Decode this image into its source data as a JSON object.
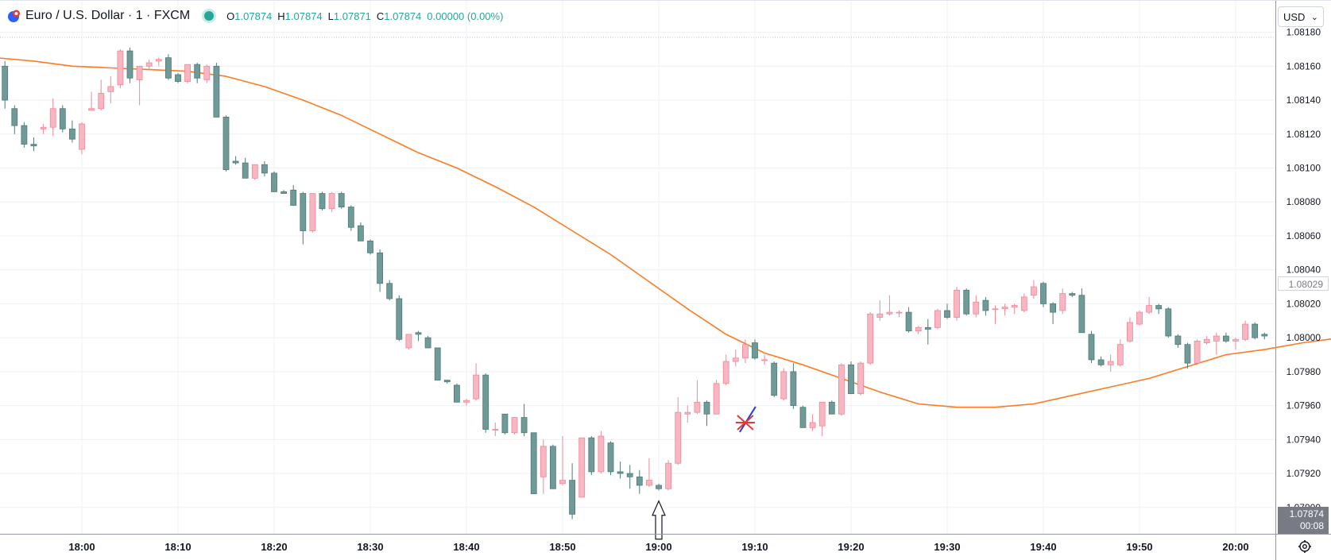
{
  "symbol": {
    "title": "Euro / U.S. Dollar · 1 · FXCM",
    "icon": "eurusd-flag-icon",
    "status_icon": "market-open-dot-icon"
  },
  "ohlc": {
    "o_label": "O",
    "o": "1.07874",
    "h_label": "H",
    "h": "1.07874",
    "l_label": "L",
    "l": "1.07871",
    "c_label": "C",
    "c": "1.07874",
    "change": "0.00000 (0.00%)"
  },
  "currency": {
    "label": "USD",
    "icon": "chevron-down-icon"
  },
  "settings": {
    "icon": "gear-icon"
  },
  "price_tags": {
    "ma_value": "1.08029",
    "last_price": "1.07874",
    "countdown": "00:08"
  },
  "colors": {
    "up": "#f7b6c2",
    "up_border": "#f08898",
    "down": "#6f9a98",
    "down_border": "#4f7a78",
    "ma": "#ff7a20",
    "grid": "#edf0f4",
    "accent": "#26a69a"
  },
  "annotations": [
    {
      "type": "arrow-up",
      "time": "19:00",
      "price": 1.079
    },
    {
      "type": "cross-marker",
      "time": "19:09",
      "price": 1.0795
    }
  ],
  "chart_data": {
    "type": "candlestick",
    "title": "Euro / U.S. Dollar · 1 · FXCM",
    "y_ticks": [
      "1.08180",
      "1.08160",
      "1.08140",
      "1.08120",
      "1.08100",
      "1.08080",
      "1.08060",
      "1.08040",
      "1.08020",
      "1.08000",
      "1.07980",
      "1.07960",
      "1.07940",
      "1.07920",
      "1.07900"
    ],
    "x_ticks": [
      "18:00",
      "18:10",
      "18:20",
      "18:30",
      "18:40",
      "18:50",
      "19:00",
      "19:10",
      "19:20",
      "19:30",
      "19:40",
      "19:50",
      "20:00"
    ],
    "ylim": [
      1.07869,
      1.08199
    ],
    "grid": true,
    "series": [
      {
        "name": "",
        "type": "candles",
        "columns": [
          "o",
          "h",
          "l",
          "c"
        ],
        "values": [
          [
            1.0816,
            1.08163,
            1.0815,
            1.08157
          ],
          [
            1.0816,
            1.08163,
            1.08135,
            1.0814
          ],
          [
            1.08135,
            1.08137,
            1.0812,
            1.08125
          ],
          [
            1.08125,
            1.08127,
            1.08112,
            1.08114
          ],
          [
            1.08114,
            1.08118,
            1.0811,
            1.08113
          ],
          [
            1.08123,
            1.08126,
            1.0812,
            1.08124
          ],
          [
            1.08124,
            1.08141,
            1.08119,
            1.08135
          ],
          [
            1.08135,
            1.08137,
            1.08121,
            1.08123
          ],
          [
            1.08123,
            1.08128,
            1.08115,
            1.08117
          ],
          [
            1.08111,
            1.08127,
            1.08108,
            1.08126
          ],
          [
            1.08134,
            1.08145,
            1.08134,
            1.08135
          ],
          [
            1.08135,
            1.08152,
            1.08134,
            1.08144
          ],
          [
            1.08145,
            1.08154,
            1.08138,
            1.08148
          ],
          [
            1.08149,
            1.0817,
            1.08147,
            1.08169
          ],
          [
            1.08169,
            1.08171,
            1.0815,
            1.08153
          ],
          [
            1.08152,
            1.08159,
            1.08137,
            1.0816
          ],
          [
            1.0816,
            1.08164,
            1.08158,
            1.08162
          ],
          [
            1.08163,
            1.08165,
            1.0816,
            1.08164
          ],
          [
            1.08165,
            1.08167,
            1.08152,
            1.08153
          ],
          [
            1.08155,
            1.08156,
            1.0815,
            1.08151
          ],
          [
            1.08151,
            1.08161,
            1.0815,
            1.08161
          ],
          [
            1.08161,
            1.08162,
            1.0815,
            1.08153
          ],
          [
            1.08152,
            1.08161,
            1.0815,
            1.0816
          ],
          [
            1.0816,
            1.08162,
            1.0813,
            1.0813
          ],
          [
            1.0813,
            1.08131,
            1.08098,
            1.08099
          ],
          [
            1.08104,
            1.08107,
            1.08102,
            1.08103
          ],
          [
            1.08103,
            1.08106,
            1.08094,
            1.08094
          ],
          [
            1.08094,
            1.08102,
            1.08093,
            1.08102
          ],
          [
            1.08102,
            1.08104,
            1.08095,
            1.08097
          ],
          [
            1.08097,
            1.08098,
            1.08086,
            1.08086
          ],
          [
            1.08086,
            1.08087,
            1.08085,
            1.08085
          ],
          [
            1.08087,
            1.0809,
            1.08078,
            1.08078
          ],
          [
            1.08085,
            1.08086,
            1.08055,
            1.08063
          ],
          [
            1.08063,
            1.08085,
            1.08062,
            1.08085
          ],
          [
            1.08085,
            1.08086,
            1.08075,
            1.08076
          ],
          [
            1.08076,
            1.08086,
            1.08074,
            1.08085
          ],
          [
            1.08085,
            1.08086,
            1.08076,
            1.08077
          ],
          [
            1.08077,
            1.08078,
            1.08063,
            1.08065
          ],
          [
            1.08066,
            1.08068,
            1.08057,
            1.08057
          ],
          [
            1.08057,
            1.08058,
            1.08049,
            1.0805
          ],
          [
            1.0805,
            1.08052,
            1.08027,
            1.08032
          ],
          [
            1.08032,
            1.08034,
            1.08022,
            1.08023
          ],
          [
            1.08023,
            1.08025,
            1.07998,
            1.07999
          ],
          [
            1.07994,
            1.08002,
            1.07993,
            1.08002
          ],
          [
            1.08003,
            1.08004,
            1.07998,
            1.08002
          ],
          [
            1.08,
            1.08001,
            1.07994,
            1.07994
          ],
          [
            1.07994,
            1.07994,
            1.07975,
            1.07975
          ],
          [
            1.07975,
            1.07975,
            1.07973,
            1.07974
          ],
          [
            1.07972,
            1.07973,
            1.07962,
            1.07962
          ],
          [
            1.07962,
            1.07964,
            1.0796,
            1.07963
          ],
          [
            1.07964,
            1.07985,
            1.07963,
            1.07978
          ],
          [
            1.07978,
            1.07979,
            1.07944,
            1.07946
          ],
          [
            1.07946,
            1.0795,
            1.07942,
            1.07946
          ],
          [
            1.07955,
            1.07955,
            1.07943,
            1.07944
          ],
          [
            1.07944,
            1.07952,
            1.07943,
            1.07953
          ],
          [
            1.07953,
            1.07961,
            1.07942,
            1.07944
          ],
          [
            1.07944,
            1.07944,
            1.07908,
            1.07908
          ],
          [
            1.07918,
            1.0794,
            1.07908,
            1.07936
          ],
          [
            1.07936,
            1.07937,
            1.07911,
            1.07911
          ],
          [
            1.07914,
            1.07942,
            1.07913,
            1.07916
          ],
          [
            1.07916,
            1.07926,
            1.07893,
            1.07896
          ],
          [
            1.07906,
            1.07941,
            1.07906,
            1.07941
          ],
          [
            1.07941,
            1.07942,
            1.07919,
            1.07921
          ],
          [
            1.07921,
            1.07945,
            1.0792,
            1.07942
          ],
          [
            1.07938,
            1.07939,
            1.07919,
            1.07921
          ],
          [
            1.07921,
            1.07927,
            1.07917,
            1.0792
          ],
          [
            1.0792,
            1.07925,
            1.07911,
            1.07918
          ],
          [
            1.07918,
            1.07922,
            1.07908,
            1.07913
          ],
          [
            1.07913,
            1.07929,
            1.07912,
            1.07916
          ],
          [
            1.07913,
            1.07914,
            1.0791,
            1.07911
          ],
          [
            1.07911,
            1.07928,
            1.0791,
            1.07926
          ],
          [
            1.07926,
            1.07965,
            1.07925,
            1.07956
          ],
          [
            1.07955,
            1.0796,
            1.0795,
            1.07956
          ],
          [
            1.07956,
            1.07975,
            1.07955,
            1.07962
          ],
          [
            1.07962,
            1.07963,
            1.07948,
            1.07955
          ],
          [
            1.07955,
            1.07975,
            1.07955,
            1.07973
          ],
          [
            1.07973,
            1.0799,
            1.07972,
            1.07986
          ],
          [
            1.07986,
            1.07993,
            1.07983,
            1.07988
          ],
          [
            1.07988,
            1.07999,
            1.07985,
            1.07996
          ],
          [
            1.07997,
            1.07999,
            1.07987,
            1.07988
          ],
          [
            1.07987,
            1.0799,
            1.07984,
            1.07987
          ],
          [
            1.07985,
            1.07986,
            1.07965,
            1.07966
          ],
          [
            1.07964,
            1.07982,
            1.07963,
            1.0798
          ],
          [
            1.0798,
            1.07985,
            1.07958,
            1.0796
          ],
          [
            1.07959,
            1.0796,
            1.07947,
            1.07947
          ],
          [
            1.07947,
            1.07955,
            1.07945,
            1.0795
          ],
          [
            1.07948,
            1.07962,
            1.07942,
            1.07962
          ],
          [
            1.07962,
            1.07963,
            1.07955,
            1.07955
          ],
          [
            1.07955,
            1.07985,
            1.07954,
            1.07984
          ],
          [
            1.07984,
            1.07986,
            1.07967,
            1.07967
          ],
          [
            1.07967,
            1.07986,
            1.07966,
            1.07985
          ],
          [
            1.07985,
            1.08015,
            1.07984,
            1.08014
          ],
          [
            1.08012,
            1.08022,
            1.0801,
            1.08014
          ],
          [
            1.08014,
            1.08025,
            1.08013,
            1.08015
          ],
          [
            1.08015,
            1.08016,
            1.08012,
            1.08015
          ],
          [
            1.08015,
            1.08018,
            1.08003,
            1.08004
          ],
          [
            1.08004,
            1.08007,
            1.08002,
            1.08006
          ],
          [
            1.08006,
            1.08011,
            1.07996,
            1.08005
          ],
          [
            1.08006,
            1.08017,
            1.08005,
            1.08016
          ],
          [
            1.08016,
            1.0802,
            1.08011,
            1.08012
          ],
          [
            1.08012,
            1.0803,
            1.0801,
            1.08028
          ],
          [
            1.08028,
            1.08029,
            1.08013,
            1.08014
          ],
          [
            1.08014,
            1.08025,
            1.08012,
            1.08021
          ],
          [
            1.08022,
            1.08024,
            1.08013,
            1.08016
          ],
          [
            1.08017,
            1.08019,
            1.08008,
            1.08017
          ],
          [
            1.08017,
            1.0802,
            1.08013,
            1.08018
          ],
          [
            1.08018,
            1.0802,
            1.08014,
            1.08019
          ],
          [
            1.08016,
            1.08026,
            1.08015,
            1.08024
          ],
          [
            1.08025,
            1.08034,
            1.08023,
            1.0803
          ],
          [
            1.08032,
            1.08033,
            1.08018,
            1.0802
          ],
          [
            1.0802,
            1.08021,
            1.08008,
            1.08015
          ],
          [
            1.08016,
            1.08029,
            1.08014,
            1.08026
          ],
          [
            1.08026,
            1.08027,
            1.08024,
            1.08025
          ],
          [
            1.08025,
            1.08029,
            1.08003,
            1.08003
          ],
          [
            1.08002,
            1.08004,
            1.07985,
            1.07987
          ],
          [
            1.07987,
            1.07989,
            1.07983,
            1.07984
          ],
          [
            1.07984,
            1.0799,
            1.0798,
            1.07986
          ],
          [
            1.07984,
            1.07999,
            1.07983,
            1.07996
          ],
          [
            1.07998,
            1.08012,
            1.07997,
            1.08009
          ],
          [
            1.08008,
            1.08016,
            1.08007,
            1.08015
          ],
          [
            1.08015,
            1.08024,
            1.08014,
            1.08019
          ],
          [
            1.08019,
            1.0802,
            1.08014,
            1.08017
          ],
          [
            1.08017,
            1.08018,
            1.08,
            1.08001
          ],
          [
            1.08001,
            1.08002,
            1.07994,
            1.07996
          ],
          [
            1.07996,
            1.07997,
            1.07982,
            1.07985
          ],
          [
            1.07985,
            1.07999,
            1.07984,
            1.07998
          ],
          [
            1.07997,
            1.08001,
            1.07996,
            1.07999
          ],
          [
            1.07998,
            1.08003,
            1.0799,
            1.08001
          ],
          [
            1.08001,
            1.08003,
            1.07997,
            1.07998
          ],
          [
            1.07998,
            1.08,
            1.07993,
            1.07999
          ],
          [
            1.07999,
            1.0801,
            1.07998,
            1.08008
          ],
          [
            1.08008,
            1.08009,
            1.07999,
            1.08
          ],
          [
            1.08002,
            1.08003,
            1.07999,
            1.08001
          ],
          [
            1.08,
            1.08008,
            1.07999,
            1.08006
          ],
          [
            1.08006,
            1.08007,
            1.08002,
            1.08003
          ],
          [
            1.08006,
            1.08019,
            1.08004,
            1.08006
          ],
          [
            1.08006,
            1.08009,
            1.08005,
            1.08008
          ],
          [
            1.08008,
            1.08009,
            1.08007,
            1.08007
          ],
          [
            1.08007,
            1.08023,
            1.08006,
            1.08021
          ],
          [
            1.08021,
            1.0804,
            1.0802,
            1.08036
          ]
        ]
      },
      {
        "name": "",
        "type": "line",
        "values": [
          [
            0,
            1.08165
          ],
          [
            4,
            1.08163
          ],
          [
            8,
            1.0816
          ],
          [
            12,
            1.08159
          ],
          [
            16,
            1.08158
          ],
          [
            20,
            1.08157
          ],
          [
            24,
            1.08154
          ],
          [
            28,
            1.08148
          ],
          [
            32,
            1.0814
          ],
          [
            36,
            1.08131
          ],
          [
            40,
            1.0812
          ],
          [
            44,
            1.08109
          ],
          [
            48,
            1.081
          ],
          [
            52,
            1.08089
          ],
          [
            56,
            1.08077
          ],
          [
            60,
            1.08063
          ],
          [
            64,
            1.08049
          ],
          [
            68,
            1.08033
          ],
          [
            72,
            1.08017
          ],
          [
            76,
            1.08002
          ],
          [
            80,
            1.07991
          ],
          [
            84,
            1.07984
          ],
          [
            88,
            1.07976
          ],
          [
            92,
            1.07968
          ],
          [
            96,
            1.07961
          ],
          [
            100,
            1.07959
          ],
          [
            104,
            1.07959
          ],
          [
            108,
            1.07961
          ],
          [
            112,
            1.07966
          ],
          [
            116,
            1.07971
          ],
          [
            120,
            1.07976
          ],
          [
            124,
            1.07983
          ],
          [
            128,
            1.0799
          ],
          [
            132,
            1.07993
          ],
          [
            136,
            1.07997
          ],
          [
            140,
            1.08
          ],
          [
            144,
            1.08001
          ],
          [
            148,
            1.08003
          ],
          [
            152,
            1.08005
          ],
          [
            156,
            1.08008
          ]
        ]
      }
    ]
  }
}
